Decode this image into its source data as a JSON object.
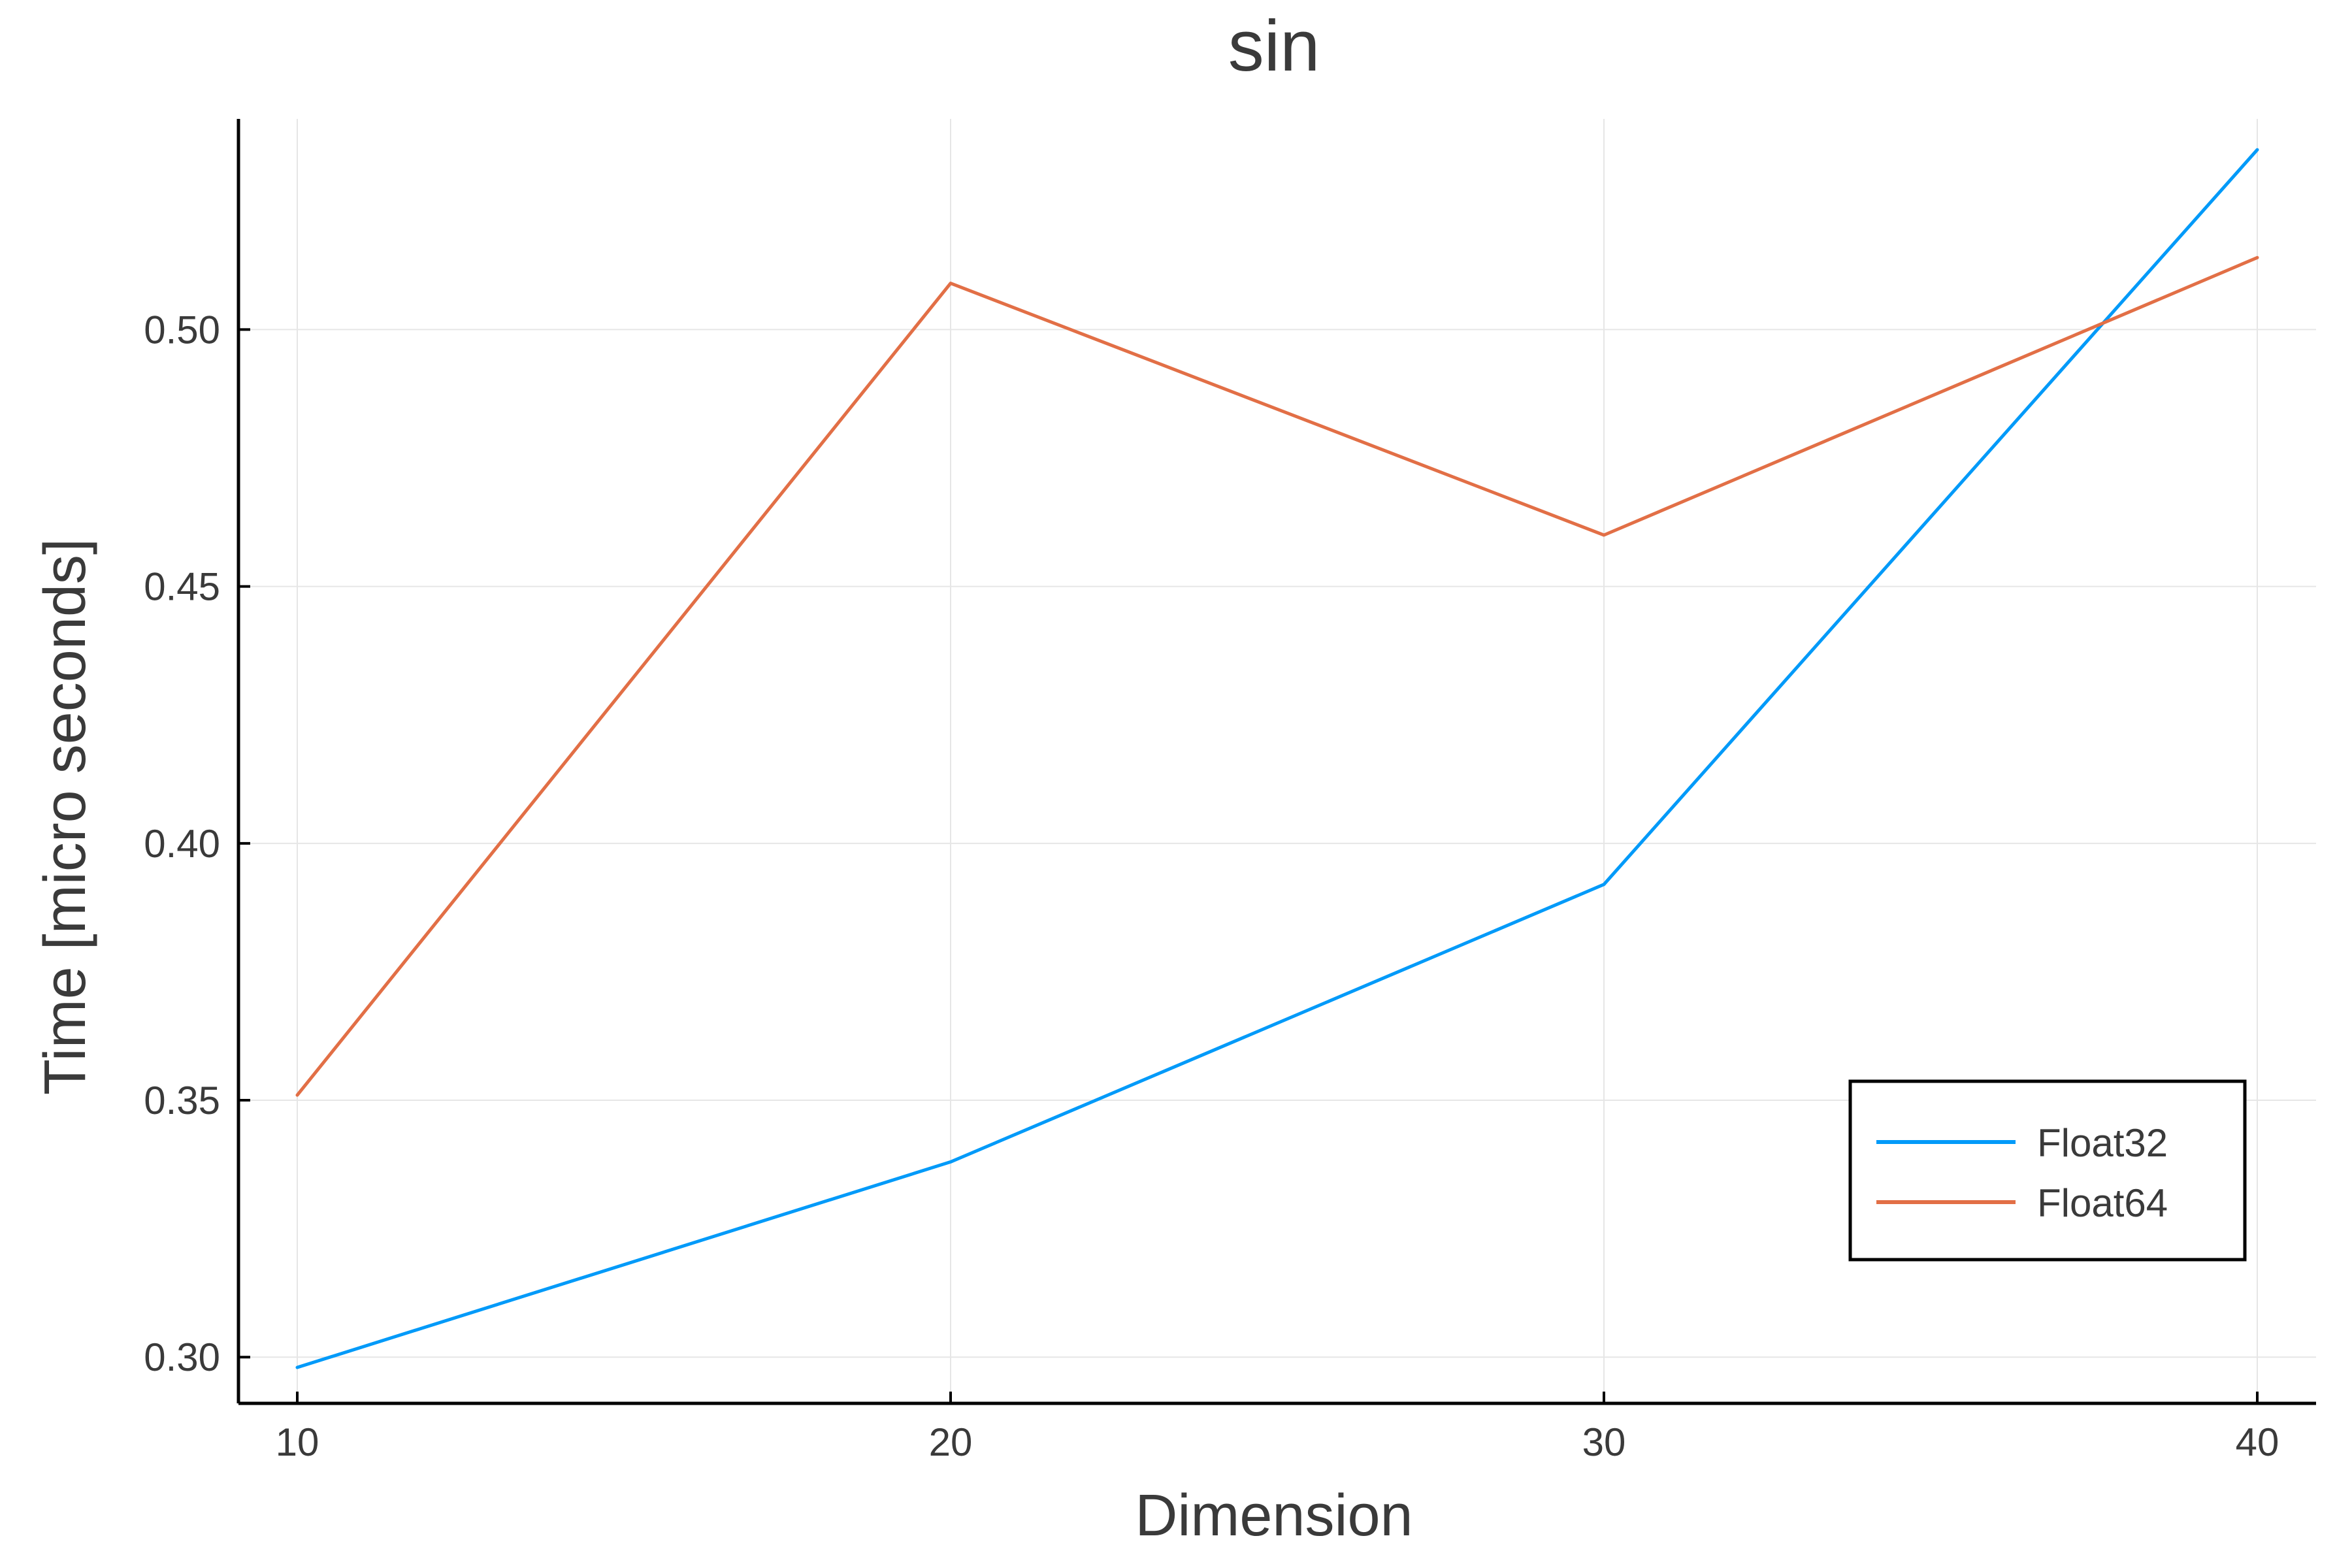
{
  "chart_data": {
    "type": "line",
    "title": "sin",
    "xlabel": "Dimension",
    "ylabel": "Time [micro seconds]",
    "x": [
      10,
      20,
      30,
      40
    ],
    "xlim": [
      9.1,
      40.9
    ],
    "ylim": [
      0.291,
      0.541
    ],
    "xticks": [
      10,
      20,
      30,
      40
    ],
    "xtick_labels": [
      "10",
      "20",
      "30",
      "40"
    ],
    "yticks": [
      0.3,
      0.35,
      0.4,
      0.45,
      0.5
    ],
    "ytick_labels": [
      "0.30",
      "0.35",
      "0.40",
      "0.45",
      "0.50"
    ],
    "grid": true,
    "legend_position": "bottom-right",
    "series": [
      {
        "name": "Float32",
        "color": "#009af9",
        "values": [
          0.298,
          0.338,
          0.392,
          0.535
        ]
      },
      {
        "name": "Float64",
        "color": "#e26f46",
        "values": [
          0.351,
          0.509,
          0.46,
          0.514
        ]
      }
    ]
  }
}
